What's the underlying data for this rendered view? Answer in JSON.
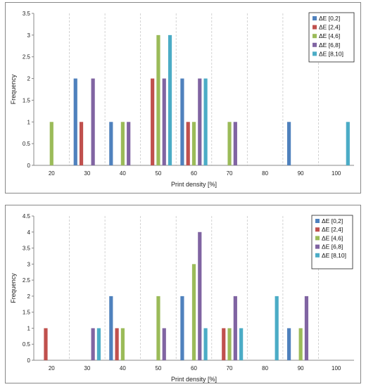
{
  "chart_data": [
    {
      "type": "bar",
      "xlabel": "Print density [%]",
      "ylabel": "Frequency",
      "categories": [
        "20",
        "30",
        "40",
        "50",
        "60",
        "70",
        "80",
        "90",
        "100"
      ],
      "ylim": [
        0,
        3.5
      ],
      "yticks": [
        "0",
        "0.5",
        "1",
        "1.5",
        "2",
        "2.5",
        "3",
        "3.5"
      ],
      "legend_position": "top-right",
      "series": [
        {
          "name": "ΔE [0,2]",
          "color": "#4F81BD",
          "values": [
            0,
            2,
            1,
            0,
            2,
            0,
            0,
            1,
            0
          ]
        },
        {
          "name": "ΔE [2,4]",
          "color": "#C0504D",
          "values": [
            0,
            1,
            0,
            2,
            1,
            0,
            0,
            0,
            0
          ]
        },
        {
          "name": "ΔE [4,6]",
          "color": "#9BBB59",
          "values": [
            1,
            0,
            1,
            3,
            1,
            1,
            0,
            0,
            0
          ]
        },
        {
          "name": "ΔE [6,8]",
          "color": "#8064A2",
          "values": [
            0,
            2,
            1,
            2,
            2,
            1,
            0,
            0,
            0
          ]
        },
        {
          "name": "ΔE [8,10]",
          "color": "#4BACC6",
          "values": [
            0,
            0,
            0,
            3,
            2,
            0,
            0,
            0,
            1
          ]
        }
      ]
    },
    {
      "type": "bar",
      "xlabel": "Print density [%]",
      "ylabel": "Frequency",
      "categories": [
        "20",
        "30",
        "40",
        "50",
        "60",
        "70",
        "80",
        "90",
        "100"
      ],
      "ylim": [
        0,
        4.5
      ],
      "yticks": [
        "0",
        "0.5",
        "1",
        "1.5",
        "2",
        "2.5",
        "3",
        "3.5",
        "4",
        "4.5"
      ],
      "legend_position": "top-right",
      "series": [
        {
          "name": "ΔE [0,2]",
          "color": "#4F81BD",
          "values": [
            0,
            0,
            2,
            0,
            2,
            0,
            0,
            1,
            0
          ]
        },
        {
          "name": "ΔE [2,4]",
          "color": "#C0504D",
          "values": [
            1,
            0,
            1,
            0,
            0,
            1,
            0,
            0,
            0
          ]
        },
        {
          "name": "ΔE [4,6]",
          "color": "#9BBB59",
          "values": [
            0,
            0,
            1,
            2,
            3,
            1,
            0,
            1,
            0
          ]
        },
        {
          "name": "ΔE [6,8]",
          "color": "#8064A2",
          "values": [
            0,
            1,
            0,
            1,
            4,
            2,
            0,
            2,
            0
          ]
        },
        {
          "name": "ΔE [8,10]",
          "color": "#4BACC6",
          "values": [
            0,
            1,
            0,
            0,
            1,
            1,
            2,
            0,
            0
          ]
        }
      ]
    }
  ]
}
